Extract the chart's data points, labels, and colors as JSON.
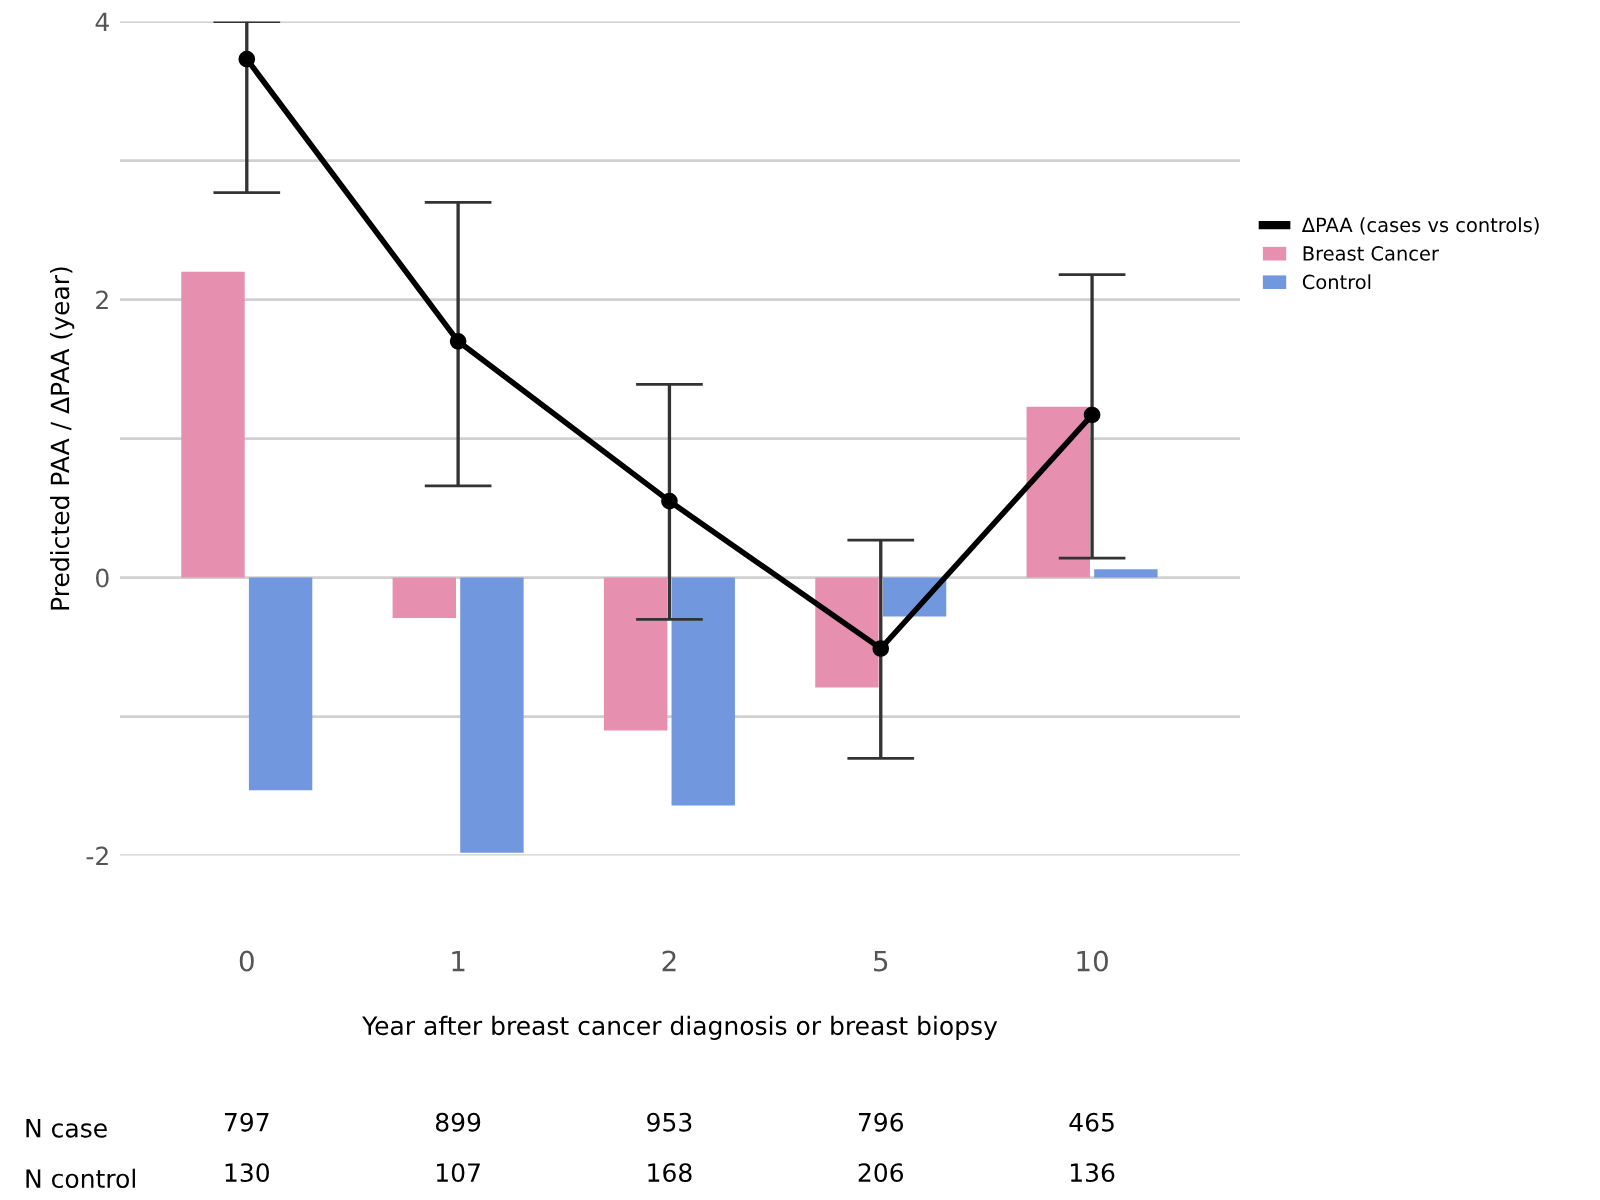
{
  "chart_data": {
    "type": "bar",
    "ylabel": "Predicted PAA / ΔPAA (year)",
    "xlabel": "Year after breast cancer diagnosis or breast biopsy",
    "categories": [
      "0",
      "1",
      "2",
      "5",
      "10"
    ],
    "series": [
      {
        "name": "ΔPAA (cases vs controls)",
        "type": "line",
        "color": "#000000",
        "marker": "circle",
        "values": [
          3.73,
          1.7,
          0.55,
          -0.51,
          1.17
        ],
        "errors": [
          [
            2.77,
            4.0
          ],
          [
            0.66,
            2.7
          ],
          [
            -0.3,
            1.39
          ],
          [
            -1.3,
            0.27
          ],
          [
            0.14,
            2.18
          ]
        ]
      },
      {
        "name": "Breast Cancer",
        "color": "#e78fae",
        "values": [
          2.2,
          -0.29,
          -1.1,
          -0.79,
          1.23
        ]
      },
      {
        "name": "Control",
        "color": "#7197df",
        "values": [
          -1.53,
          -1.98,
          -1.64,
          -0.28,
          0.06
        ]
      }
    ],
    "ylim": [
      -2,
      4
    ],
    "yticks": [
      -2,
      {
        "value": -1,
        "label": null
      },
      0,
      {
        "value": 1,
        "label": null
      },
      2,
      {
        "value": 3,
        "label": null
      },
      4
    ],
    "grid": "y",
    "legend": "right",
    "annotations": [
      "N case",
      "797",
      "899",
      "953",
      "796",
      "465",
      "N control",
      "130",
      "107",
      "168",
      "206",
      "136"
    ]
  }
}
